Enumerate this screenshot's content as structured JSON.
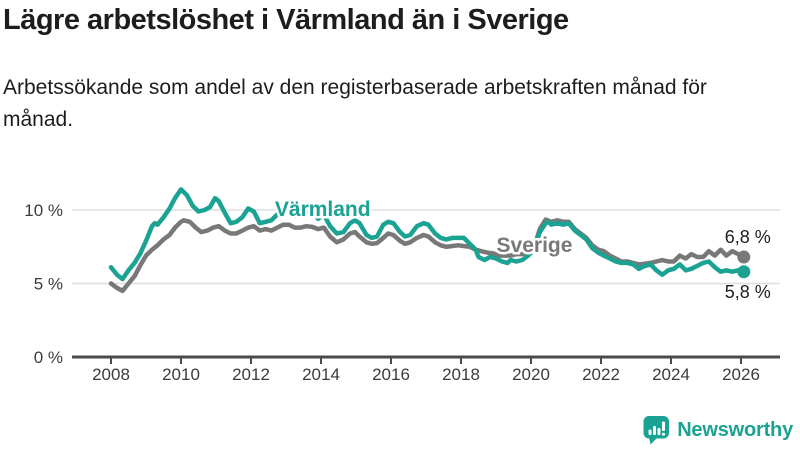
{
  "header": {
    "title": "Lägre arbetslöshet i Värmland än i Sverige",
    "subtitle": "Arbetssökande som andel av den registerbaserade arbetskraften månad för månad."
  },
  "colors": {
    "varmland": "#1aa293",
    "sverige": "#787878",
    "grid": "#dedede",
    "axis": "#4b4b4b",
    "tick_text": "#3c3c3c",
    "text_dark": "#1d1d1b",
    "brand": "#1aa293",
    "background": "#ffffff"
  },
  "footer": {
    "brand": "Newsworthy"
  },
  "chart_data": {
    "type": "line",
    "title": "Lägre arbetslöshet i Värmland än i Sverige",
    "subtitle": "Arbetssökande som andel av den registerbaserade arbetskraften månad för månad.",
    "xlabel": "",
    "ylabel": "",
    "grid": "horizontal",
    "legend": "inline-labels",
    "xlim": [
      2007.5,
      2027.1
    ],
    "ylim": [
      0,
      13
    ],
    "x_ticks": [
      2008,
      2010,
      2012,
      2014,
      2016,
      2018,
      2020,
      2022,
      2024,
      2026
    ],
    "y_ticks": [
      {
        "value": 0,
        "label": "0 %"
      },
      {
        "value": 5,
        "label": "5 %"
      },
      {
        "value": 10,
        "label": "10 %"
      }
    ],
    "series": [
      {
        "name": "Sverige",
        "color_key": "sverige",
        "end_value_label": "6,8 %",
        "points": [
          [
            2008.0,
            5.0
          ],
          [
            2008.17,
            4.7
          ],
          [
            2008.33,
            4.5
          ],
          [
            2008.5,
            5.0
          ],
          [
            2008.67,
            5.5
          ],
          [
            2008.83,
            6.2
          ],
          [
            2009.0,
            6.9
          ],
          [
            2009.17,
            7.3
          ],
          [
            2009.33,
            7.6
          ],
          [
            2009.5,
            8.0
          ],
          [
            2009.67,
            8.3
          ],
          [
            2009.83,
            8.8
          ],
          [
            2010.0,
            9.2
          ],
          [
            2010.08,
            9.3
          ],
          [
            2010.25,
            9.2
          ],
          [
            2010.42,
            8.8
          ],
          [
            2010.58,
            8.5
          ],
          [
            2010.75,
            8.6
          ],
          [
            2010.92,
            8.8
          ],
          [
            2011.08,
            8.9
          ],
          [
            2011.25,
            8.6
          ],
          [
            2011.42,
            8.4
          ],
          [
            2011.58,
            8.4
          ],
          [
            2011.75,
            8.6
          ],
          [
            2011.92,
            8.8
          ],
          [
            2012.08,
            8.9
          ],
          [
            2012.25,
            8.6
          ],
          [
            2012.42,
            8.7
          ],
          [
            2012.58,
            8.6
          ],
          [
            2012.75,
            8.8
          ],
          [
            2012.92,
            9.0
          ],
          [
            2013.08,
            9.0
          ],
          [
            2013.25,
            8.8
          ],
          [
            2013.42,
            8.8
          ],
          [
            2013.58,
            8.9
          ],
          [
            2013.75,
            8.85
          ],
          [
            2013.92,
            8.7
          ],
          [
            2014.08,
            8.8
          ],
          [
            2014.26,
            8.2
          ],
          [
            2014.45,
            7.8
          ],
          [
            2014.64,
            8.0
          ],
          [
            2014.83,
            8.4
          ],
          [
            2014.97,
            8.5
          ],
          [
            2015.1,
            8.2
          ],
          [
            2015.3,
            7.8
          ],
          [
            2015.45,
            7.7
          ],
          [
            2015.6,
            7.75
          ],
          [
            2015.78,
            8.1
          ],
          [
            2015.92,
            8.4
          ],
          [
            2016.07,
            8.3
          ],
          [
            2016.26,
            7.9
          ],
          [
            2016.4,
            7.7
          ],
          [
            2016.55,
            7.8
          ],
          [
            2016.74,
            8.1
          ],
          [
            2016.93,
            8.3
          ],
          [
            2017.07,
            8.2
          ],
          [
            2017.26,
            7.8
          ],
          [
            2017.42,
            7.6
          ],
          [
            2017.58,
            7.5
          ],
          [
            2017.75,
            7.55
          ],
          [
            2017.92,
            7.6
          ],
          [
            2018.08,
            7.55
          ],
          [
            2018.25,
            7.5
          ],
          [
            2018.42,
            7.3
          ],
          [
            2018.58,
            7.2
          ],
          [
            2018.75,
            7.1
          ],
          [
            2018.92,
            7.05
          ],
          [
            2019.08,
            6.9
          ],
          [
            2019.25,
            6.9
          ],
          [
            2019.42,
            6.9
          ],
          [
            2019.58,
            7.0
          ],
          [
            2019.75,
            7.0
          ],
          [
            2019.92,
            7.1
          ],
          [
            2020.08,
            7.4
          ],
          [
            2020.25,
            8.7
          ],
          [
            2020.42,
            9.35
          ],
          [
            2020.58,
            9.2
          ],
          [
            2020.75,
            9.3
          ],
          [
            2020.92,
            9.2
          ],
          [
            2021.08,
            9.2
          ],
          [
            2021.25,
            8.7
          ],
          [
            2021.42,
            8.4
          ],
          [
            2021.58,
            8.1
          ],
          [
            2021.75,
            7.6
          ],
          [
            2021.92,
            7.3
          ],
          [
            2022.08,
            7.2
          ],
          [
            2022.25,
            6.9
          ],
          [
            2022.42,
            6.7
          ],
          [
            2022.58,
            6.5
          ],
          [
            2022.75,
            6.5
          ],
          [
            2022.92,
            6.4
          ],
          [
            2023.08,
            6.3
          ],
          [
            2023.25,
            6.35
          ],
          [
            2023.42,
            6.4
          ],
          [
            2023.58,
            6.5
          ],
          [
            2023.75,
            6.6
          ],
          [
            2023.92,
            6.5
          ],
          [
            2024.08,
            6.5
          ],
          [
            2024.25,
            6.9
          ],
          [
            2024.42,
            6.7
          ],
          [
            2024.58,
            7.0
          ],
          [
            2024.75,
            6.8
          ],
          [
            2024.92,
            6.8
          ],
          [
            2025.08,
            7.2
          ],
          [
            2025.25,
            6.9
          ],
          [
            2025.42,
            7.3
          ],
          [
            2025.58,
            6.9
          ],
          [
            2025.75,
            7.2
          ],
          [
            2025.92,
            7.0
          ],
          [
            2026.08,
            6.8
          ]
        ]
      },
      {
        "name": "Värmland",
        "color_key": "varmland",
        "end_value_label": "5,8 %",
        "points": [
          [
            2008.0,
            6.1
          ],
          [
            2008.17,
            5.6
          ],
          [
            2008.33,
            5.3
          ],
          [
            2008.5,
            5.9
          ],
          [
            2008.67,
            6.4
          ],
          [
            2008.83,
            7.0
          ],
          [
            2009.0,
            7.9
          ],
          [
            2009.17,
            8.9
          ],
          [
            2009.25,
            9.1
          ],
          [
            2009.33,
            9.0
          ],
          [
            2009.5,
            9.5
          ],
          [
            2009.67,
            10.1
          ],
          [
            2009.83,
            10.8
          ],
          [
            2010.0,
            11.4
          ],
          [
            2010.17,
            11.0
          ],
          [
            2010.33,
            10.3
          ],
          [
            2010.5,
            9.9
          ],
          [
            2010.67,
            10.0
          ],
          [
            2010.83,
            10.2
          ],
          [
            2010.97,
            10.8
          ],
          [
            2011.08,
            10.6
          ],
          [
            2011.25,
            9.8
          ],
          [
            2011.42,
            9.1
          ],
          [
            2011.58,
            9.2
          ],
          [
            2011.75,
            9.5
          ],
          [
            2011.92,
            10.1
          ],
          [
            2012.08,
            9.9
          ],
          [
            2012.25,
            9.1
          ],
          [
            2012.42,
            9.2
          ],
          [
            2012.58,
            9.3
          ],
          [
            2012.75,
            9.7
          ],
          [
            2012.92,
            10.0
          ],
          [
            2013.08,
            10.1
          ],
          [
            2013.25,
            9.6
          ],
          [
            2013.42,
            9.7
          ],
          [
            2013.58,
            9.9
          ],
          [
            2013.75,
            9.8
          ],
          [
            2013.92,
            9.4
          ],
          [
            2014.08,
            9.7
          ],
          [
            2014.26,
            8.9
          ],
          [
            2014.45,
            8.4
          ],
          [
            2014.64,
            8.5
          ],
          [
            2014.83,
            9.1
          ],
          [
            2014.97,
            9.3
          ],
          [
            2015.1,
            9.1
          ],
          [
            2015.3,
            8.3
          ],
          [
            2015.45,
            8.1
          ],
          [
            2015.6,
            8.2
          ],
          [
            2015.78,
            9.0
          ],
          [
            2015.92,
            9.2
          ],
          [
            2016.07,
            9.1
          ],
          [
            2016.26,
            8.5
          ],
          [
            2016.4,
            8.2
          ],
          [
            2016.55,
            8.3
          ],
          [
            2016.74,
            8.9
          ],
          [
            2016.93,
            9.1
          ],
          [
            2017.07,
            9.0
          ],
          [
            2017.26,
            8.4
          ],
          [
            2017.42,
            8.1
          ],
          [
            2017.58,
            8.0
          ],
          [
            2017.75,
            8.1
          ],
          [
            2017.92,
            8.1
          ],
          [
            2018.08,
            8.1
          ],
          [
            2018.25,
            7.7
          ],
          [
            2018.42,
            7.3
          ],
          [
            2018.5,
            6.8
          ],
          [
            2018.67,
            6.6
          ],
          [
            2018.83,
            6.8
          ],
          [
            2019.0,
            6.7
          ],
          [
            2019.17,
            6.5
          ],
          [
            2019.33,
            6.4
          ],
          [
            2019.42,
            6.6
          ],
          [
            2019.58,
            6.5
          ],
          [
            2019.75,
            6.6
          ],
          [
            2019.92,
            6.9
          ],
          [
            2020.08,
            7.3
          ],
          [
            2020.25,
            8.5
          ],
          [
            2020.42,
            9.1
          ],
          [
            2020.5,
            9.2
          ],
          [
            2020.58,
            9.0
          ],
          [
            2020.75,
            9.1
          ],
          [
            2020.92,
            9.0
          ],
          [
            2021.08,
            9.1
          ],
          [
            2021.25,
            8.6
          ],
          [
            2021.42,
            8.3
          ],
          [
            2021.58,
            8.0
          ],
          [
            2021.75,
            7.4
          ],
          [
            2021.92,
            7.1
          ],
          [
            2022.08,
            6.9
          ],
          [
            2022.25,
            6.7
          ],
          [
            2022.42,
            6.5
          ],
          [
            2022.58,
            6.4
          ],
          [
            2022.75,
            6.4
          ],
          [
            2022.92,
            6.3
          ],
          [
            2023.08,
            6.0
          ],
          [
            2023.25,
            6.2
          ],
          [
            2023.42,
            6.3
          ],
          [
            2023.58,
            5.9
          ],
          [
            2023.75,
            5.6
          ],
          [
            2023.92,
            5.9
          ],
          [
            2024.08,
            6.0
          ],
          [
            2024.25,
            6.3
          ],
          [
            2024.42,
            5.9
          ],
          [
            2024.58,
            6.0
          ],
          [
            2024.75,
            6.2
          ],
          [
            2024.92,
            6.4
          ],
          [
            2025.08,
            6.5
          ],
          [
            2025.25,
            6.1
          ],
          [
            2025.42,
            5.8
          ],
          [
            2025.58,
            5.9
          ],
          [
            2025.75,
            5.8
          ],
          [
            2025.92,
            5.9
          ],
          [
            2026.08,
            5.8
          ]
        ]
      }
    ],
    "annotations": [
      {
        "kind": "series-label",
        "text": "Värmland",
        "color_key": "varmland",
        "year": 2014.05,
        "value": 9.6
      },
      {
        "kind": "series-label",
        "text": "Sverige",
        "color_key": "sverige",
        "year": 2020.1,
        "value": 7.15
      },
      {
        "kind": "value-label",
        "text": "6,8 %",
        "color_key": "text_dark",
        "year": 2026.85,
        "value": 7.75
      },
      {
        "kind": "value-label",
        "text": "5,8 %",
        "color_key": "text_dark",
        "year": 2026.85,
        "value": 4.0
      }
    ]
  }
}
